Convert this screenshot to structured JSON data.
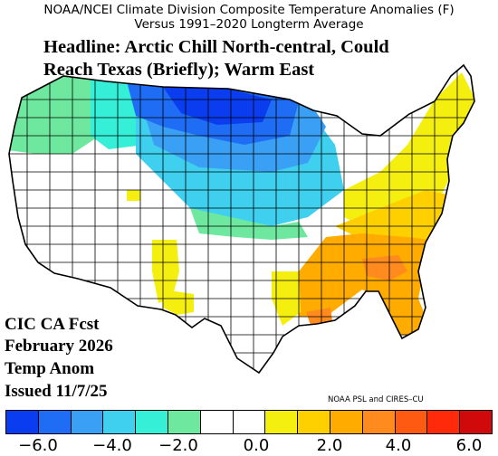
{
  "title": {
    "line1": "NOAA/NCEI Climate Division Composite Temperature Anomalies (F)",
    "line2": "Versus 1991–2020 Longterm Average"
  },
  "headline": {
    "line1": "Headline: Arctic Chill North-central, Could",
    "line2": "Reach Texas (Briefly); Warm East"
  },
  "forecast_label": {
    "line1": "CIC CA Fcst",
    "line2": "February 2026",
    "line3": "Temp Anom",
    "line4": "Issued 11/7/25"
  },
  "credit": "NOAA PSL and CIRES–CU",
  "colors": {
    "bins": [
      "#0a3cf0",
      "#1f6cf5",
      "#3aa0f5",
      "#3fd0f0",
      "#35efd6",
      "#6ee89e",
      "#ffffff",
      "#ffffff",
      "#f5ef10",
      "#ffd000",
      "#ffab00",
      "#ff8a1e",
      "#ff5a12",
      "#ff2a0a",
      "#d00a0a"
    ]
  },
  "colorbar": {
    "ticks": [
      "−6.0",
      "−4.0",
      "−2.0",
      "0.0",
      "2.0",
      "4.0",
      "6.0"
    ]
  },
  "regions": [
    {
      "name": "pacific-northwest",
      "anomaly_class": "light-green"
    },
    {
      "name": "northern-rockies",
      "anomaly_class": "cyan"
    },
    {
      "name": "northern-plains",
      "anomaly_class": "blue"
    },
    {
      "name": "upper-midwest",
      "anomaly_class": "blue"
    },
    {
      "name": "central-plains",
      "anomaly_class": "aqua"
    },
    {
      "name": "southwest",
      "anomaly_class": "near-normal"
    },
    {
      "name": "texas-west",
      "anomaly_class": "yellow"
    },
    {
      "name": "gulf-coast",
      "anomaly_class": "orange"
    },
    {
      "name": "southeast",
      "anomaly_class": "orange"
    },
    {
      "name": "mid-atlantic",
      "anomaly_class": "gold"
    },
    {
      "name": "new-england",
      "anomaly_class": "yellow"
    }
  ]
}
